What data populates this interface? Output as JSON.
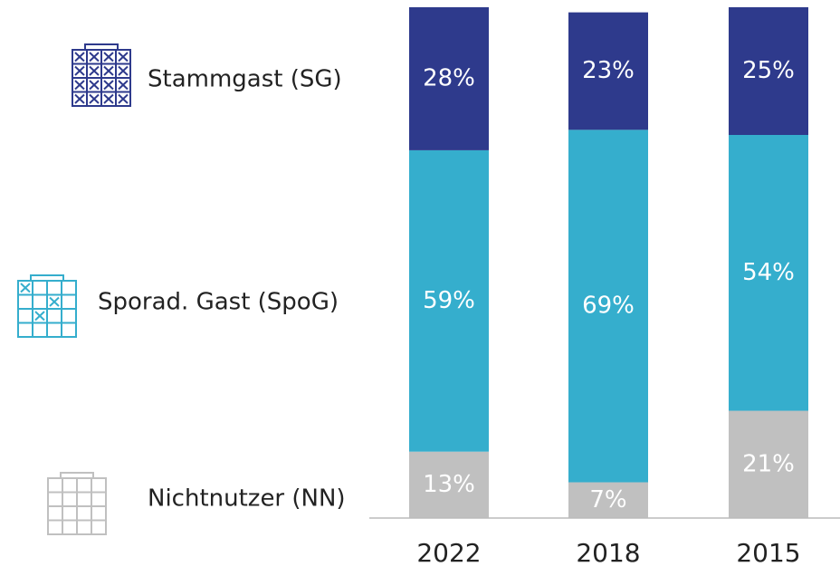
{
  "chart_data": {
    "type": "stacked_bar",
    "categories": [
      "2022",
      "2018",
      "2015"
    ],
    "series": [
      {
        "name": "Stammgast (SG)",
        "color": "#2e3a8c",
        "values": [
          28,
          23,
          25
        ],
        "value_labels": [
          "28%",
          "23%",
          "25%"
        ]
      },
      {
        "name": "Sporad. Gast (SpoG)",
        "color": "#35aecd",
        "values": [
          59,
          69,
          54
        ],
        "value_labels": [
          "59%",
          "69%",
          "54%"
        ]
      },
      {
        "name": "Nichtnutzer (NN)",
        "color": "#c0c0c0",
        "values": [
          13,
          7,
          21
        ],
        "value_labels": [
          "13%",
          "7%",
          "21%"
        ]
      }
    ],
    "ylim": [
      0,
      100
    ]
  }
}
